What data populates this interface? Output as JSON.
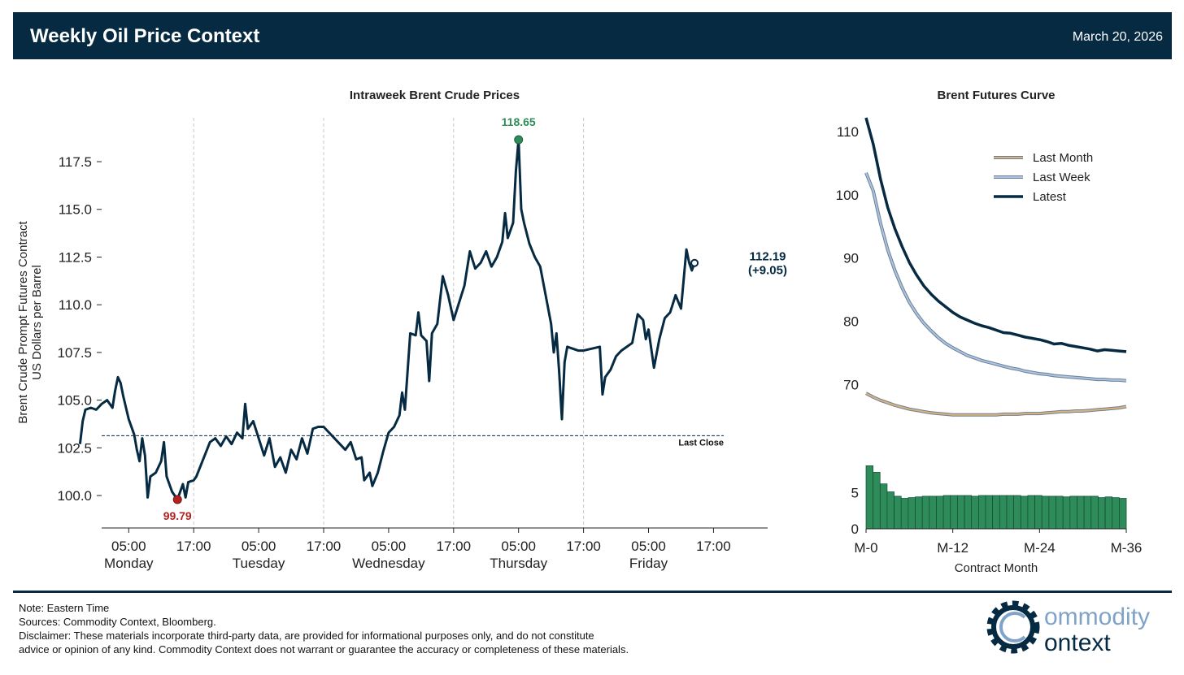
{
  "header": {
    "title": "Weekly Oil Price Context",
    "date": "March 20, 2026"
  },
  "colors": {
    "navy": "#052A42",
    "green": "#2E8B5A",
    "red": "#B22222",
    "tan": "#D8B480",
    "lightblue": "#A9C4E4"
  },
  "chart_data": [
    {
      "type": "line",
      "title": "Intraweek Brent Crude Prices",
      "ylabel": "Brent Crude Prompt Futures Contract\nUS Dollars per Barrel",
      "xlabel": "",
      "ylim": [
        98.3,
        119.8
      ],
      "xlim": [
        0,
        123
      ],
      "y_ticks": [
        "100.0",
        "102.5",
        "105.0",
        "107.5",
        "110.0",
        "112.5",
        "115.0",
        "117.5"
      ],
      "x_tick_hours": [
        5,
        17,
        29,
        41,
        53,
        65,
        77,
        89,
        101,
        113
      ],
      "x_tick_labels": [
        "05:00",
        "17:00",
        "05:00",
        "17:00",
        "05:00",
        "17:00",
        "05:00",
        "17:00",
        "05:00",
        "17:00"
      ],
      "day_labels": [
        {
          "hour": 5,
          "label": "Monday"
        },
        {
          "hour": 29,
          "label": "Tuesday"
        },
        {
          "hour": 53,
          "label": "Wednesday"
        },
        {
          "hour": 77,
          "label": "Thursday"
        },
        {
          "hour": 101,
          "label": "Friday"
        }
      ],
      "day_boundaries": [
        17,
        41,
        65,
        89
      ],
      "series": [
        {
          "name": "Brent prompt futures",
          "points": [
            [
              -4,
              102.7
            ],
            [
              -3.5,
              103.9
            ],
            [
              -3,
              104.5
            ],
            [
              -2,
              104.6
            ],
            [
              -1,
              104.5
            ],
            [
              0,
              104.8
            ],
            [
              1,
              105.0
            ],
            [
              2,
              104.6
            ],
            [
              2.5,
              105.5
            ],
            [
              3,
              106.2
            ],
            [
              3.5,
              105.9
            ],
            [
              4,
              105.2
            ],
            [
              5,
              104.0
            ],
            [
              6,
              103.2
            ],
            [
              6.5,
              102.4
            ],
            [
              7,
              101.8
            ],
            [
              7.5,
              103.0
            ],
            [
              8,
              102.1
            ],
            [
              8.5,
              99.9
            ],
            [
              9,
              101.0
            ],
            [
              10,
              101.2
            ],
            [
              11,
              101.8
            ],
            [
              11.5,
              102.8
            ],
            [
              12,
              101.0
            ],
            [
              13,
              100.2
            ],
            [
              14,
              99.79
            ],
            [
              15,
              100.6
            ],
            [
              15.5,
              99.9
            ],
            [
              16,
              100.7
            ],
            [
              17,
              100.8
            ],
            [
              17.5,
              101.0
            ],
            [
              20,
              102.8
            ],
            [
              21,
              103.0
            ],
            [
              22,
              102.6
            ],
            [
              23,
              103.1
            ],
            [
              24,
              102.7
            ],
            [
              25,
              103.3
            ],
            [
              26,
              103.0
            ],
            [
              26.5,
              104.8
            ],
            [
              27,
              103.5
            ],
            [
              28,
              103.9
            ],
            [
              29,
              103.0
            ],
            [
              30,
              102.1
            ],
            [
              31,
              103.0
            ],
            [
              32,
              101.5
            ],
            [
              33,
              102.0
            ],
            [
              34,
              101.2
            ],
            [
              35,
              102.4
            ],
            [
              36,
              101.9
            ],
            [
              37,
              103.0
            ],
            [
              38,
              102.2
            ],
            [
              39,
              103.5
            ],
            [
              40,
              103.6
            ],
            [
              41,
              103.6
            ],
            [
              45,
              102.4
            ],
            [
              46,
              102.8
            ],
            [
              47,
              101.9
            ],
            [
              48,
              102.0
            ],
            [
              48.5,
              100.8
            ],
            [
              49.5,
              101.2
            ],
            [
              50,
              100.5
            ],
            [
              51,
              101.2
            ],
            [
              52,
              102.3
            ],
            [
              53,
              103.3
            ],
            [
              54,
              103.6
            ],
            [
              55,
              104.2
            ],
            [
              55.5,
              105.4
            ],
            [
              56,
              104.5
            ],
            [
              57,
              108.5
            ],
            [
              58,
              108.4
            ],
            [
              58.5,
              109.6
            ],
            [
              59,
              108.4
            ],
            [
              60,
              108.1
            ],
            [
              60.5,
              106.0
            ],
            [
              61,
              108.5
            ],
            [
              62,
              109.0
            ],
            [
              63,
              111.5
            ],
            [
              64,
              110.5
            ],
            [
              65,
              109.2
            ],
            [
              67,
              111.0
            ],
            [
              68,
              112.8
            ],
            [
              69,
              111.9
            ],
            [
              70,
              112.2
            ],
            [
              71,
              112.8
            ],
            [
              72,
              112.0
            ],
            [
              73,
              112.5
            ],
            [
              74,
              113.3
            ],
            [
              74.5,
              114.8
            ],
            [
              75,
              113.5
            ],
            [
              76,
              114.3
            ],
            [
              76.5,
              117.0
            ],
            [
              77,
              118.65
            ],
            [
              77.5,
              115.0
            ],
            [
              78,
              114.3
            ],
            [
              79,
              113.2
            ],
            [
              80,
              112.5
            ],
            [
              81,
              112.0
            ],
            [
              82,
              110.5
            ],
            [
              83,
              109.0
            ],
            [
              83.5,
              107.5
            ],
            [
              84,
              108.5
            ],
            [
              84.5,
              106.5
            ],
            [
              85,
              104.0
            ],
            [
              85.5,
              107.0
            ],
            [
              86,
              107.8
            ],
            [
              88,
              107.6
            ],
            [
              89,
              107.6
            ],
            [
              92,
              107.8
            ],
            [
              92.5,
              105.3
            ],
            [
              93,
              106.2
            ],
            [
              94,
              106.6
            ],
            [
              95,
              107.3
            ],
            [
              96,
              107.6
            ],
            [
              97,
              107.8
            ],
            [
              98,
              108.0
            ],
            [
              99,
              109.5
            ],
            [
              100,
              109.2
            ],
            [
              100.5,
              108.2
            ],
            [
              101,
              108.7
            ],
            [
              102,
              106.7
            ],
            [
              103,
              108.2
            ],
            [
              104,
              109.3
            ],
            [
              105,
              109.6
            ],
            [
              106,
              110.5
            ],
            [
              107,
              109.8
            ],
            [
              108,
              112.9
            ],
            [
              108.5,
              112.2
            ],
            [
              109,
              111.8
            ],
            [
              109.5,
              112.19
            ]
          ]
        }
      ],
      "last_close": {
        "value": 103.14,
        "label": "Last Close"
      },
      "max_point": {
        "hour": 77,
        "value": 118.65,
        "label": "118.65"
      },
      "min_point": {
        "hour": 14,
        "value": 99.79,
        "label": "99.79"
      },
      "latest_point": {
        "hour": 109.5,
        "value": 112.19,
        "label": "112.19",
        "change_label": "(+9.05)"
      }
    },
    {
      "type": "line",
      "title": "Brent Futures Curve",
      "xlabel": "Contract Month",
      "ylim": [
        64,
        112.2
      ],
      "y_ticks": [
        70,
        80,
        90,
        100,
        110
      ],
      "x_ticks": [
        0,
        12,
        24,
        36
      ],
      "x_tick_labels": [
        "M-0",
        "M-12",
        "M-24",
        "M-36"
      ],
      "legend": [
        "Last Month",
        "Last Week",
        "Latest"
      ],
      "legend_placement": "top-right",
      "series": [
        {
          "name": "Last Month",
          "values": [
            68.6,
            68.0,
            67.5,
            67.1,
            66.7,
            66.4,
            66.1,
            65.9,
            65.7,
            65.5,
            65.4,
            65.3,
            65.2,
            65.2,
            65.2,
            65.2,
            65.2,
            65.2,
            65.2,
            65.3,
            65.3,
            65.3,
            65.4,
            65.4,
            65.4,
            65.5,
            65.6,
            65.7,
            65.7,
            65.8,
            65.8,
            65.9,
            66.0,
            66.1,
            66.2,
            66.3,
            66.5
          ]
        },
        {
          "name": "Last Week",
          "values": [
            103.5,
            100.6,
            95.5,
            91.3,
            88.0,
            85.3,
            83.0,
            81.2,
            79.7,
            78.5,
            77.4,
            76.5,
            75.8,
            75.2,
            74.6,
            74.2,
            73.8,
            73.5,
            73.2,
            72.9,
            72.6,
            72.4,
            72.1,
            71.9,
            71.7,
            71.6,
            71.4,
            71.3,
            71.2,
            71.1,
            71.0,
            70.9,
            70.8,
            70.8,
            70.7,
            70.7,
            70.6
          ]
        },
        {
          "name": "Latest",
          "values": [
            112.2,
            108.0,
            102.5,
            98.0,
            94.6,
            91.8,
            89.3,
            87.3,
            85.6,
            84.3,
            83.2,
            82.3,
            81.4,
            80.7,
            80.2,
            79.7,
            79.3,
            79.0,
            78.6,
            78.2,
            78.1,
            77.8,
            77.5,
            77.3,
            77.1,
            76.8,
            76.4,
            76.5,
            76.2,
            76.0,
            75.8,
            75.6,
            75.3,
            75.5,
            75.4,
            75.3,
            75.2
          ]
        }
      ]
    },
    {
      "type": "bar",
      "title": "",
      "xlabel": "Contract Month",
      "ylim": [
        0,
        10.2
      ],
      "y_ticks": [
        0,
        5
      ],
      "x_ticks": [
        0,
        12,
        24,
        36
      ],
      "x_tick_labels": [
        "M-0",
        "M-12",
        "M-24",
        "M-36"
      ],
      "values": [
        8.7,
        7.8,
        6.2,
        5.1,
        4.5,
        4.2,
        4.3,
        4.4,
        4.5,
        4.5,
        4.5,
        4.6,
        4.6,
        4.6,
        4.6,
        4.5,
        4.6,
        4.6,
        4.6,
        4.6,
        4.6,
        4.6,
        4.5,
        4.6,
        4.6,
        4.5,
        4.5,
        4.5,
        4.4,
        4.5,
        4.5,
        4.5,
        4.5,
        4.3,
        4.4,
        4.3,
        4.2
      ]
    }
  ],
  "footer": {
    "note": "Note: Eastern Time",
    "sources": "Sources: Commodity Context, Bloomberg.",
    "disclaimer_1": "Disclaimer: These materials incorporate third-party data, are provided for informational purposes only, and do not constitute",
    "disclaimer_2": "advice or opinion of any kind. Commodity Context does not warrant or guarantee the accuracy or completeness of these materials."
  },
  "logo": {
    "word_1": "ommodity",
    "word_2": "ontext"
  }
}
